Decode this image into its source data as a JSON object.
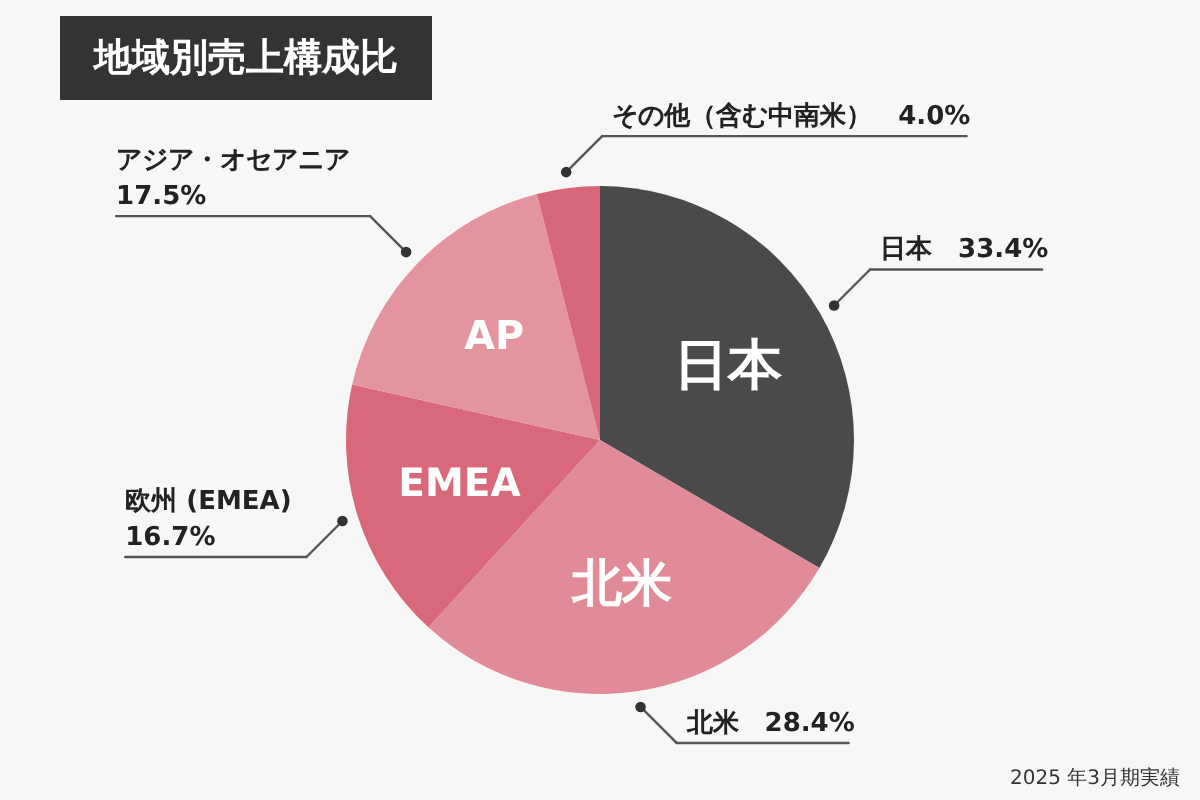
{
  "chart_data": {
    "type": "pie",
    "title": "地域別売上構成比",
    "categories": [
      "日本",
      "北米",
      "欧州 (EMEA)",
      "アジア・オセアニア",
      "その他（含む中南米）"
    ],
    "values": [
      33.4,
      28.4,
      16.7,
      17.5,
      4.0
    ],
    "colors": [
      "#4a4a4a",
      "#e08b97",
      "#d9687a",
      "#e4949f",
      "#d8677a"
    ],
    "value_labels": [
      "33.4%",
      "28.4%",
      "16.7%",
      "17.5%",
      "4.0%"
    ],
    "annotations": [
      {
        "text": "日本",
        "x": "日本"
      },
      {
        "text": "北米",
        "x": "北米"
      },
      {
        "text": "EMEA",
        "x": "欧州 (EMEA)"
      },
      {
        "text": "AP",
        "x": "アジア・オセアニア"
      },
      "2025 年3月期実績"
    ]
  }
}
